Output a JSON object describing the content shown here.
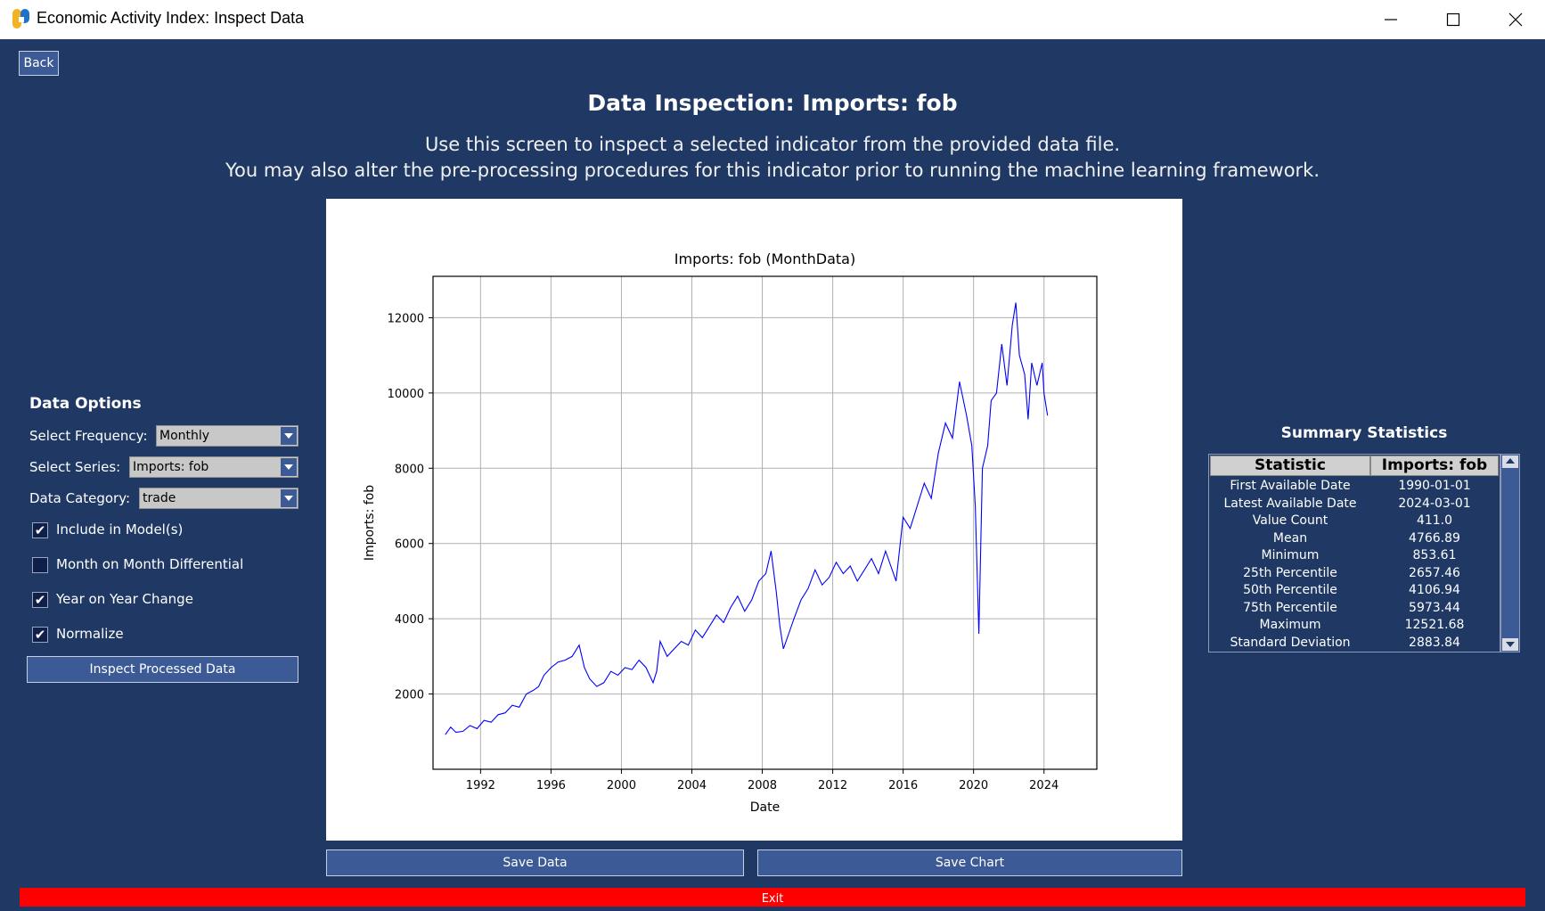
{
  "window": {
    "title": "Economic Activity Index: Inspect Data"
  },
  "nav": {
    "back_label": "Back"
  },
  "header": {
    "title": "Data Inspection: Imports: fob",
    "subtitle_line1": "Use this screen to inspect a selected indicator from the provided data file.",
    "subtitle_line2": "You may also alter the pre-processing procedures for this indicator prior to running the machine learning framework."
  },
  "data_options": {
    "title": "Data Options",
    "frequency_label": "Select Frequency:",
    "frequency_value": "Monthly",
    "series_label": "Select Series:",
    "series_value": "Imports: fob",
    "category_label": "Data Category:",
    "category_value": "trade",
    "checkboxes": [
      {
        "label": "Include in Model(s)",
        "checked": true
      },
      {
        "label": "Month on Month Differential",
        "checked": false
      },
      {
        "label": "Year on Year Change",
        "checked": true
      },
      {
        "label": "Normalize",
        "checked": true
      }
    ],
    "inspect_button": "Inspect Processed Data"
  },
  "actions": {
    "save_data": "Save Data",
    "save_chart": "Save Chart",
    "exit": "Exit"
  },
  "summary": {
    "title": "Summary Statistics",
    "col_stat": "Statistic",
    "col_value": "Imports: fob",
    "rows": [
      {
        "stat": "First Available Date",
        "value": "1990-01-01"
      },
      {
        "stat": "Latest Available Date",
        "value": "2024-03-01"
      },
      {
        "stat": "Value Count",
        "value": "411.0"
      },
      {
        "stat": "Mean",
        "value": "4766.89"
      },
      {
        "stat": "Minimum",
        "value": "853.61"
      },
      {
        "stat": "25th Percentile",
        "value": "2657.46"
      },
      {
        "stat": "50th Percentile",
        "value": "4106.94"
      },
      {
        "stat": "75th Percentile",
        "value": "5973.44"
      },
      {
        "stat": "Maximum",
        "value": "12521.68"
      },
      {
        "stat": "Standard Deviation",
        "value": "2883.84"
      }
    ]
  },
  "chart_data": {
    "type": "line",
    "title": "Imports: fob (MonthData)",
    "xlabel": "Date",
    "ylabel": "Imports: fob",
    "xlim": [
      1989.3,
      2027.0
    ],
    "ylim": [
      0,
      13100
    ],
    "xticks": [
      1992,
      1996,
      2000,
      2004,
      2008,
      2012,
      2016,
      2020,
      2024
    ],
    "yticks": [
      2000,
      4000,
      6000,
      8000,
      10000,
      12000
    ],
    "grid": true,
    "color": "#0000ff",
    "series": [
      {
        "x": [
          1990.0,
          1990.3,
          1990.6,
          1991.0,
          1991.4,
          1991.8,
          1992.2,
          1992.6,
          1993.0,
          1993.4,
          1993.8,
          1994.2,
          1994.6,
          1995.0,
          1995.3,
          1995.6,
          1996.0,
          1996.4,
          1996.8,
          1997.2,
          1997.6,
          1997.9,
          1998.2,
          1998.6,
          1999.0,
          1999.4,
          1999.8,
          2000.2,
          2000.6,
          2001.0,
          2001.4,
          2001.8,
          2002.0,
          2002.2,
          2002.6,
          2003.0,
          2003.4,
          2003.8,
          2004.2,
          2004.6,
          2005.0,
          2005.4,
          2005.8,
          2006.2,
          2006.6,
          2007.0,
          2007.4,
          2007.8,
          2008.2,
          2008.5,
          2008.8,
          2009.0,
          2009.2,
          2009.5,
          2009.8,
          2010.2,
          2010.6,
          2011.0,
          2011.4,
          2011.8,
          2012.2,
          2012.6,
          2013.0,
          2013.4,
          2013.8,
          2014.2,
          2014.6,
          2015.0,
          2015.3,
          2015.6,
          2016.0,
          2016.4,
          2016.8,
          2017.2,
          2017.6,
          2018.0,
          2018.4,
          2018.8,
          2019.2,
          2019.6,
          2019.9,
          2020.1,
          2020.3,
          2020.5,
          2020.8,
          2021.0,
          2021.3,
          2021.6,
          2021.9,
          2022.2,
          2022.4,
          2022.6,
          2022.9,
          2023.1,
          2023.3,
          2023.6,
          2023.9,
          2024.0,
          2024.2
        ],
        "y": [
          920,
          1120,
          980,
          1010,
          1160,
          1080,
          1300,
          1250,
          1450,
          1500,
          1700,
          1650,
          2000,
          2100,
          2200,
          2500,
          2700,
          2850,
          2900,
          3000,
          3300,
          2700,
          2400,
          2200,
          2300,
          2600,
          2500,
          2700,
          2650,
          2900,
          2700,
          2300,
          2600,
          3400,
          3000,
          3200,
          3400,
          3300,
          3700,
          3500,
          3800,
          4100,
          3900,
          4300,
          4600,
          4200,
          4500,
          5000,
          5200,
          5800,
          4700,
          3800,
          3200,
          3600,
          4000,
          4500,
          4800,
          5300,
          4900,
          5100,
          5500,
          5200,
          5400,
          5000,
          5300,
          5600,
          5200,
          5800,
          5400,
          5000,
          6700,
          6400,
          7000,
          7600,
          7200,
          8400,
          9200,
          8800,
          10300,
          9400,
          8600,
          7000,
          3600,
          8000,
          8600,
          9800,
          10000,
          11300,
          10200,
          11800,
          12400,
          11000,
          10500,
          9300,
          10800,
          10200,
          10800,
          10000,
          9400
        ]
      }
    ]
  }
}
